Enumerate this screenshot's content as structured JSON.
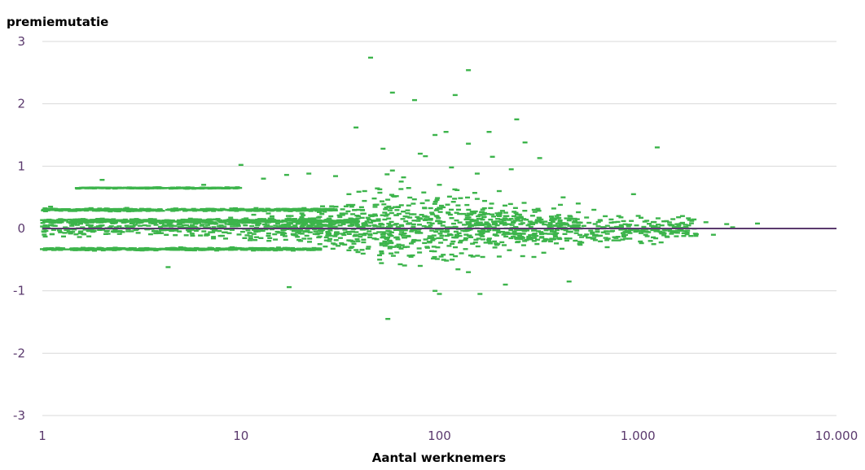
{
  "chart_data": {
    "type": "scatter",
    "title": "",
    "ylabel": "premiemutatie",
    "xlabel": "Aantal werknemers",
    "x_scale": "log",
    "xlim": [
      1,
      10000
    ],
    "ylim": [
      -3,
      3
    ],
    "x_ticks": [
      1,
      10,
      100,
      1000,
      10000
    ],
    "x_tick_labels": [
      "1",
      "10",
      "100",
      "1.000",
      "10.000"
    ],
    "y_ticks": [
      3,
      2,
      1,
      0,
      -1,
      -2,
      -3
    ],
    "y_tick_labels": [
      "3",
      "2",
      "1",
      "0",
      "-1",
      "-2",
      "-3"
    ],
    "grid": true,
    "colors": {
      "points": "#3cb44b",
      "zero_line": "#5b3a6e",
      "grid": "#d9d9d9",
      "tick_text": "#5b3a6e"
    },
    "points": [
      [
        45,
        2.74
      ],
      [
        140,
        2.54
      ],
      [
        58,
        2.18
      ],
      [
        75,
        2.06
      ],
      [
        120,
        2.14
      ],
      [
        245,
        1.75
      ],
      [
        38,
        1.62
      ],
      [
        178,
        1.55
      ],
      [
        108,
        1.55
      ],
      [
        95,
        1.5
      ],
      [
        1250,
        1.3
      ],
      [
        270,
        1.38
      ],
      [
        140,
        1.36
      ],
      [
        80,
        1.2
      ],
      [
        85,
        1.16
      ],
      [
        185,
        1.15
      ],
      [
        320,
        1.13
      ],
      [
        52,
        1.28
      ],
      [
        10,
        1.02
      ],
      [
        115,
        0.98
      ],
      [
        58,
        0.93
      ],
      [
        230,
        0.95
      ],
      [
        155,
        0.88
      ],
      [
        66,
        0.82
      ],
      [
        17,
        0.86
      ],
      [
        22,
        0.88
      ],
      [
        30,
        0.84
      ],
      [
        1.5,
        0.65
      ],
      [
        2.0,
        0.78
      ],
      [
        3.0,
        0.65
      ],
      [
        5.2,
        0.65
      ],
      [
        6.5,
        0.7
      ],
      [
        8.5,
        0.66
      ],
      [
        13,
        0.8
      ],
      [
        100,
        0.7
      ],
      [
        200,
        0.6
      ],
      [
        420,
        0.5
      ],
      [
        950,
        0.55
      ],
      [
        500,
        0.4
      ],
      [
        35,
        0.55
      ],
      [
        42,
        0.6
      ],
      [
        70,
        0.65
      ],
      [
        300,
        0.3
      ],
      [
        600,
        0.3
      ],
      [
        800,
        0.2
      ],
      [
        1500,
        0.15
      ],
      [
        2200,
        0.1
      ],
      [
        2800,
        0.07
      ],
      [
        4000,
        0.08
      ],
      [
        1800,
        0.05
      ],
      [
        1100,
        0.0
      ],
      [
        3000,
        0.02
      ],
      [
        1.1,
        0.35
      ],
      [
        4.3,
        -0.62
      ],
      [
        17.5,
        -0.94
      ],
      [
        55,
        -1.45
      ],
      [
        100,
        -1.05
      ],
      [
        95,
        -1.0
      ],
      [
        160,
        -1.05
      ],
      [
        215,
        -0.9
      ],
      [
        450,
        -0.85
      ],
      [
        700,
        -0.3
      ],
      [
        1200,
        -0.25
      ],
      [
        1700,
        -0.12
      ],
      [
        2400,
        -0.1
      ],
      [
        600,
        -0.15
      ],
      [
        300,
        -0.2
      ],
      [
        200,
        -0.45
      ],
      [
        140,
        -0.7
      ],
      [
        80,
        -0.6
      ],
      [
        50,
        -0.5
      ],
      [
        35,
        -0.35
      ],
      [
        25,
        -0.25
      ],
      [
        20,
        -0.2
      ]
    ],
    "bands": [
      {
        "y": 0.0,
        "x_min": 1,
        "x_max": 2000,
        "density": 1.0,
        "spread": 0.12
      },
      {
        "y": 0.3,
        "x_min": 1,
        "x_max": 30,
        "density": 0.5,
        "spread": 0.02
      },
      {
        "y": -0.33,
        "x_min": 1,
        "x_max": 25,
        "density": 0.5,
        "spread": 0.02
      },
      {
        "y": 0.65,
        "x_min": 1.5,
        "x_max": 10,
        "density": 0.25,
        "spread": 0.01
      },
      {
        "y": 0.12,
        "x_min": 1,
        "x_max": 40,
        "density": 0.6,
        "spread": 0.03
      }
    ]
  }
}
